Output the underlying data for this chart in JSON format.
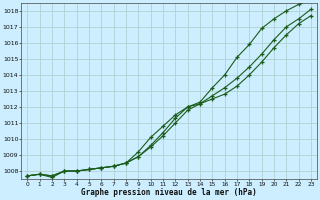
{
  "title": "Graphe pression niveau de la mer (hPa)",
  "background_color": "#cceeff",
  "grid_color": "#aacccc",
  "line_color": "#1a5c1a",
  "xlim": [
    -0.5,
    23.5
  ],
  "ylim": [
    1007.5,
    1018.5
  ],
  "yticks": [
    1008,
    1009,
    1010,
    1011,
    1012,
    1013,
    1014,
    1015,
    1016,
    1017,
    1018
  ],
  "xticks": [
    0,
    1,
    2,
    3,
    4,
    5,
    6,
    7,
    8,
    9,
    10,
    11,
    12,
    13,
    14,
    15,
    16,
    17,
    18,
    19,
    20,
    21,
    22,
    23
  ],
  "series": [
    [
      1007.7,
      1007.8,
      1007.7,
      1008.0,
      1008.0,
      1008.1,
      1008.2,
      1008.3,
      1008.5,
      1008.9,
      1009.5,
      1010.2,
      1011.0,
      1011.8,
      1012.2,
      1012.7,
      1013.2,
      1013.8,
      1014.5,
      1015.3,
      1016.2,
      1017.0,
      1017.5,
      1018.1
    ],
    [
      1007.7,
      1007.8,
      1007.6,
      1008.0,
      1008.0,
      1008.1,
      1008.2,
      1008.3,
      1008.5,
      1009.2,
      1010.1,
      1010.8,
      1011.5,
      1012.0,
      1012.2,
      1012.5,
      1012.8,
      1013.3,
      1014.0,
      1014.8,
      1015.7,
      1016.5,
      1017.2,
      1017.7
    ],
    [
      1007.7,
      1007.8,
      1007.7,
      1008.0,
      1008.0,
      1008.1,
      1008.2,
      1008.3,
      1008.5,
      1008.9,
      1009.6,
      1010.4,
      1011.3,
      1012.0,
      1012.3,
      1013.2,
      1014.0,
      1015.1,
      1015.9,
      1016.9,
      1017.5,
      1018.0,
      1018.4,
      1018.7
    ]
  ]
}
